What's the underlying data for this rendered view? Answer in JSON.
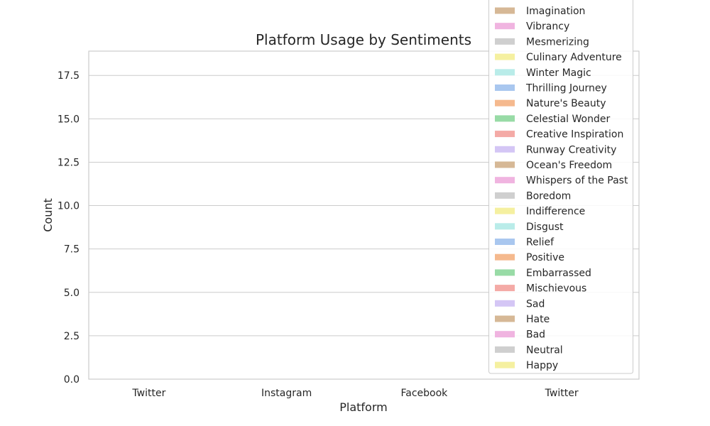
{
  "chart_data": {
    "type": "bar",
    "title": "Platform Usage by Sentiments",
    "xlabel": "Platform",
    "ylabel": "Count",
    "categories": [
      "Twitter",
      "Instagram",
      "Facebook",
      "Twitter"
    ],
    "ylim": [
      0,
      18.9
    ],
    "yticks": [
      "0.0",
      "2.5",
      "5.0",
      "7.5",
      "10.0",
      "12.5",
      "15.0",
      "17.5"
    ],
    "grid": true,
    "legend_position": "top-right",
    "legend_entries": [
      {
        "label": "Imagination",
        "color": "#d6b896"
      },
      {
        "label": "Vibrancy",
        "color": "#f0b4e0"
      },
      {
        "label": "Mesmerizing",
        "color": "#cfcfcf"
      },
      {
        "label": "Culinary Adventure",
        "color": "#f5f0a0"
      },
      {
        "label": "Winter Magic",
        "color": "#b9ece9"
      },
      {
        "label": "Thrilling Journey",
        "color": "#a9c7ef"
      },
      {
        "label": "Nature's Beauty",
        "color": "#f5b98e"
      },
      {
        "label": "Celestial Wonder",
        "color": "#98dba6"
      },
      {
        "label": "Creative Inspiration",
        "color": "#f4aaa6"
      },
      {
        "label": "Runway Creativity",
        "color": "#d4c6f5"
      },
      {
        "label": "Ocean's Freedom",
        "color": "#d6b896"
      },
      {
        "label": "Whispers of the Past",
        "color": "#f0b4e0"
      },
      {
        "label": "Boredom",
        "color": "#cfcfcf"
      },
      {
        "label": "Indifference",
        "color": "#f5f0a0"
      },
      {
        "label": "Disgust",
        "color": "#b9ece9"
      },
      {
        "label": "Relief",
        "color": "#a9c7ef"
      },
      {
        "label": "Positive",
        "color": "#f5b98e"
      },
      {
        "label": "Embarrassed",
        "color": "#98dba6"
      },
      {
        "label": "Mischievous",
        "color": "#f4aaa6"
      },
      {
        "label": "Sad",
        "color": "#d4c6f5"
      },
      {
        "label": "Hate",
        "color": "#d6b896"
      },
      {
        "label": "Bad",
        "color": "#f0b4e0"
      },
      {
        "label": "Neutral",
        "color": "#cfcfcf"
      },
      {
        "label": "Happy",
        "color": "#f5f0a0"
      }
    ]
  }
}
